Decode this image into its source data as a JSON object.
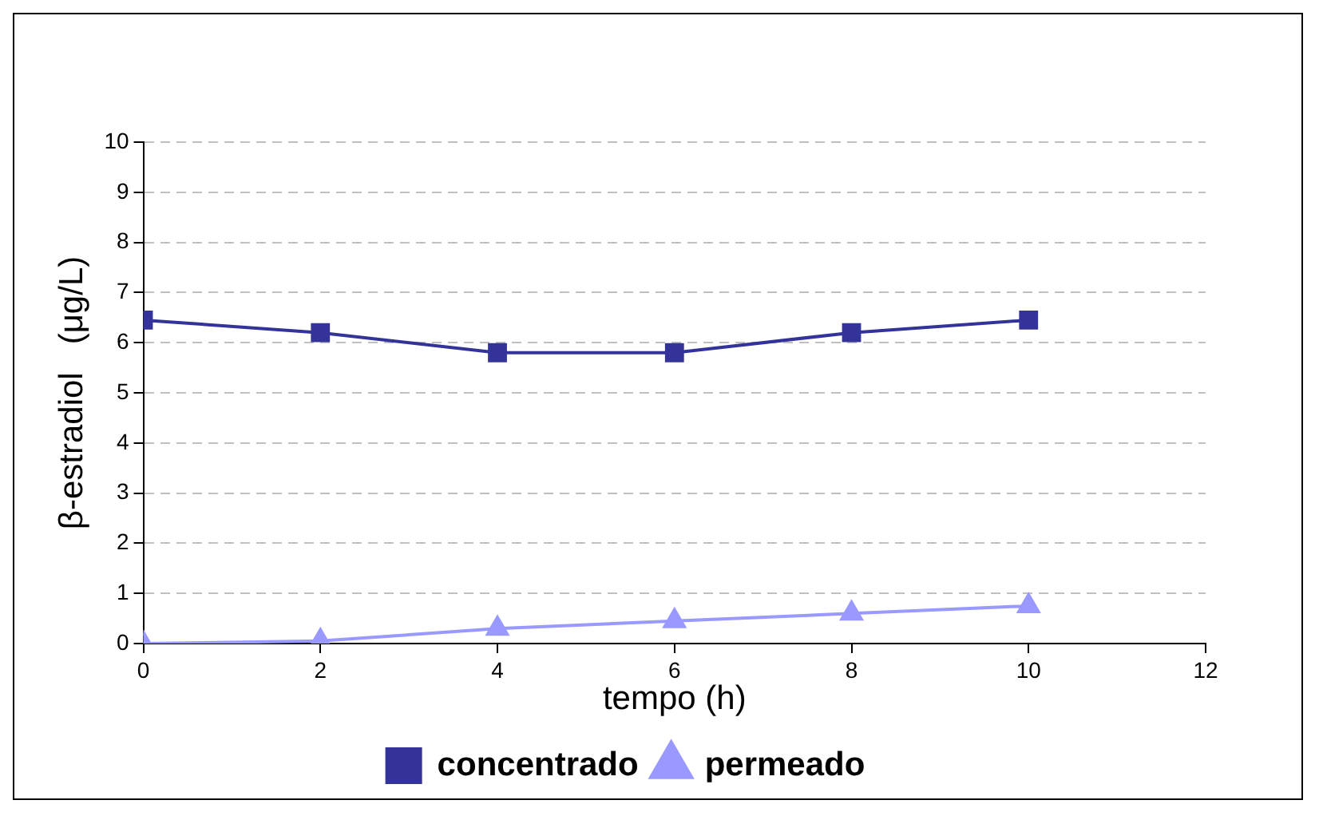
{
  "chart_data": {
    "type": "line",
    "xlabel": "tempo (h)",
    "ylabel": "β-estradiol   (μg/L)",
    "x": [
      0,
      2,
      4,
      6,
      8,
      10
    ],
    "series": [
      {
        "name": "concentrado",
        "color": "#333399",
        "values": [
          6.45,
          6.2,
          5.8,
          5.8,
          6.2,
          6.45
        ],
        "marker": "square"
      },
      {
        "name": "permeado",
        "color": "#9999ff",
        "values": [
          0,
          0.05,
          0.3,
          0.45,
          0.6,
          0.75
        ],
        "marker": "triangle"
      }
    ],
    "xlim": [
      0,
      12
    ],
    "xticks": [
      0,
      2,
      4,
      6,
      8,
      10,
      12
    ],
    "ylim": [
      0,
      10
    ],
    "yticks": [
      0,
      1,
      2,
      3,
      4,
      5,
      6,
      7,
      8,
      9,
      10
    ],
    "grid": "y",
    "legend": "bottom",
    "line_style": "solid"
  }
}
